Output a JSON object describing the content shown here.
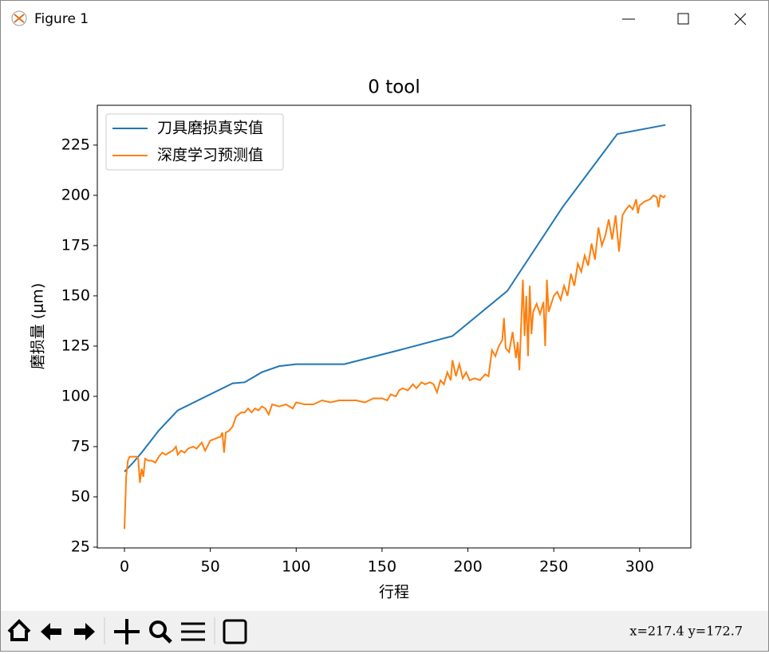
{
  "window": {
    "title": "Figure 1"
  },
  "status": "x=217.4  y=172.7",
  "chart_data": {
    "type": "line",
    "title": "0 tool",
    "x_label": "行程",
    "y_label": "磨损量 (μm)",
    "xlim": [
      -15.8,
      329.8
    ],
    "ylim": [
      24.6,
      244.8
    ],
    "xticks": [
      0,
      50,
      100,
      150,
      200,
      250,
      300
    ],
    "yticks": [
      25,
      50,
      75,
      100,
      125,
      150,
      175,
      200,
      225
    ],
    "grid": false,
    "legend": "upper left",
    "series": [
      {
        "name": "刀具磨损真实值",
        "color": "#1f77b4",
        "x": [
          0,
          5,
          10,
          20,
          31,
          63,
          70,
          80,
          90,
          100,
          128,
          160,
          191,
          223,
          255,
          287,
          315
        ],
        "values": [
          62.5,
          67,
          72,
          83,
          93,
          106.5,
          107,
          112,
          115,
          116,
          116,
          123,
          130,
          152.5,
          194,
          230.5,
          235
        ]
      },
      {
        "name": "深度学习预测值",
        "color": "#ff7f0e",
        "x": [
          0,
          1,
          2,
          3,
          5,
          7,
          8,
          9,
          10,
          11,
          12,
          14,
          16,
          18,
          20,
          22,
          24,
          26,
          28,
          30,
          31,
          33,
          35,
          37,
          40,
          42,
          45,
          47,
          50,
          53,
          56,
          57,
          58,
          59,
          61,
          63,
          65,
          68,
          70,
          72,
          74,
          76,
          78,
          80,
          82,
          84,
          86,
          90,
          94,
          98,
          100,
          105,
          110,
          115,
          120,
          125,
          130,
          135,
          140,
          145,
          150,
          153,
          155,
          158,
          160,
          162,
          165,
          168,
          170,
          173,
          175,
          178,
          180,
          182,
          184,
          186,
          188,
          190,
          191,
          193,
          195,
          197,
          199,
          201,
          204,
          207,
          210,
          212,
          214,
          216,
          218,
          220,
          221,
          222,
          224,
          226,
          228,
          229,
          230,
          232,
          233,
          234,
          235,
          236,
          237,
          238,
          240,
          242,
          244,
          245,
          246,
          247,
          250,
          252,
          254,
          256,
          258,
          260,
          262,
          264,
          266,
          268,
          270,
          272,
          274,
          276,
          278,
          280,
          282,
          284,
          286,
          288,
          290,
          292,
          294,
          296,
          298,
          299,
          300,
          303,
          306,
          308,
          310,
          311,
          312,
          314,
          315
        ],
        "values": [
          34,
          60,
          68,
          70,
          70,
          70,
          69,
          57,
          64,
          60,
          69,
          68,
          68,
          67,
          70,
          72,
          71,
          72,
          73,
          75,
          71,
          73,
          72,
          74,
          75,
          74,
          77,
          73,
          78,
          79,
          80,
          82,
          72,
          82,
          83,
          85,
          90,
          92,
          92,
          94,
          92,
          94,
          93,
          95,
          94,
          91,
          96,
          95,
          96,
          94,
          97,
          96,
          96,
          98,
          97,
          98,
          98,
          98,
          97,
          99,
          99,
          98,
          101,
          100,
          103,
          104,
          103,
          106,
          104,
          107,
          106,
          107,
          106,
          102,
          108,
          106,
          112,
          108,
          118,
          110,
          116,
          109,
          112,
          108,
          109,
          108,
          111,
          110,
          123,
          120,
          125,
          128,
          139,
          124,
          122,
          132,
          119,
          127,
          113,
          158,
          130,
          150,
          120,
          155,
          131,
          142,
          146,
          141,
          147,
          125,
          158,
          142,
          150,
          152,
          148,
          155,
          150,
          161,
          155,
          166,
          162,
          170,
          165,
          176,
          168,
          184,
          175,
          180,
          188,
          178,
          190,
          172,
          190,
          193,
          195,
          193,
          198,
          191,
          195,
          197,
          198,
          200,
          199,
          194,
          200,
          199,
          200
        ]
      }
    ]
  }
}
